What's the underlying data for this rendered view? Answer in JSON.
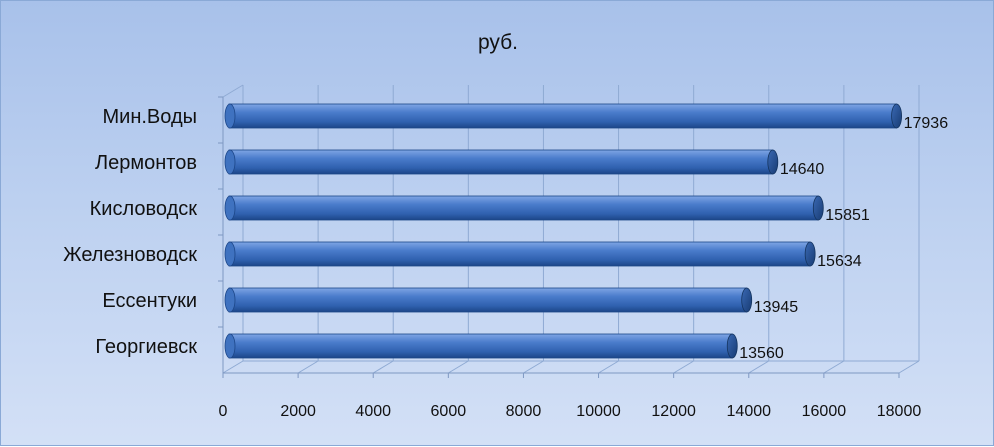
{
  "chart_data": {
    "type": "bar",
    "orientation": "horizontal",
    "style": "3d-cylinder",
    "title": "руб.",
    "categories": [
      "Мин.Воды",
      "Лермонтов",
      "Кисловодск",
      "Железноводск",
      "Ессентуки",
      "Георгиевск"
    ],
    "values": [
      17936,
      14640,
      15851,
      15634,
      13945,
      13560
    ],
    "data_labels": [
      "17936",
      "14640",
      "15851",
      "15634",
      "13945",
      "13560"
    ],
    "x_ticks": [
      "0",
      "2000",
      "4000",
      "6000",
      "8000",
      "10000",
      "12000",
      "14000",
      "16000",
      "18000"
    ],
    "xlim": [
      0,
      18000
    ],
    "xlabel": "",
    "ylabel": "",
    "grid": true,
    "legend": "none",
    "colors": {
      "bar": "#3f72c0",
      "bar_dark": "#1d4a8f",
      "bar_light": "#6f9be0",
      "grid": "#8faad3"
    }
  }
}
